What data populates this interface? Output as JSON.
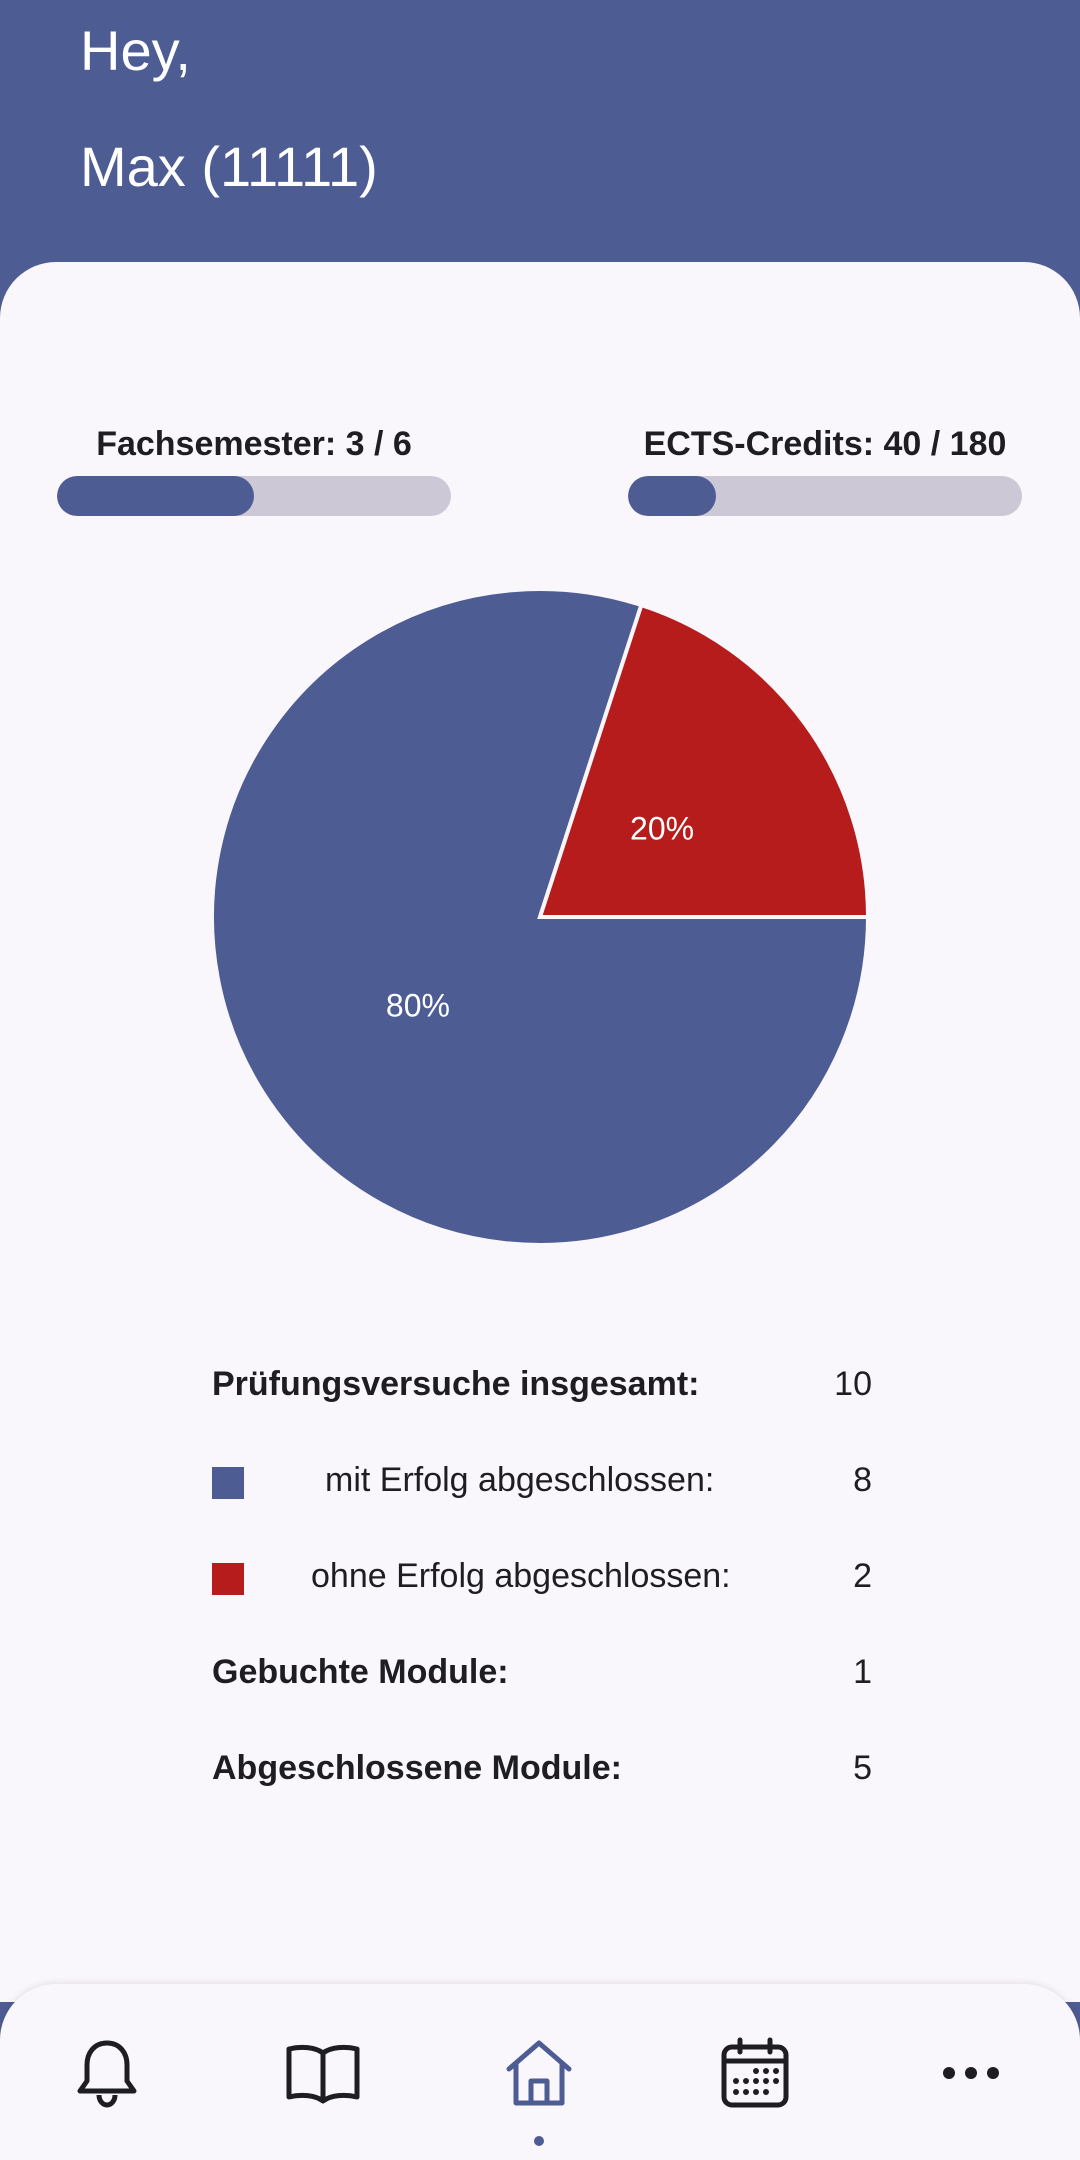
{
  "header": {
    "greeting": "Hey,",
    "user": "Max (11111)"
  },
  "progress": [
    {
      "label": "Fachsemester: 3 / 6",
      "current": 3,
      "total": 6
    },
    {
      "label": "ECTS-Credits: 40 / 180",
      "current": 40,
      "total": 180
    }
  ],
  "chart_data": {
    "type": "pie",
    "categories": [
      "mit Erfolg abgeschlossen",
      "ohne Erfolg abgeschlossen"
    ],
    "values": [
      8,
      2
    ],
    "labels": [
      "80%",
      "20%"
    ],
    "colors": [
      "#4E5C94",
      "#B71C1C"
    ]
  },
  "stats": {
    "total_label": "Prüfungsversuche insgesamt:",
    "total_value": "10",
    "success_label": "mit Erfolg abgeschlossen:",
    "success_value": "8",
    "fail_label": "ohne Erfolg abgeschlossen:",
    "fail_value": "2",
    "booked_label": "Gebuchte Module:",
    "booked_value": "1",
    "completed_label": "Abgeschlossene Module:",
    "completed_value": "5"
  },
  "nav": {
    "items": [
      "bell-icon",
      "book-icon",
      "home-icon",
      "calendar-icon",
      "more-icon"
    ],
    "active": "home-icon",
    "active_color": "#4E5C94",
    "icon_color": "#1E1E22"
  }
}
